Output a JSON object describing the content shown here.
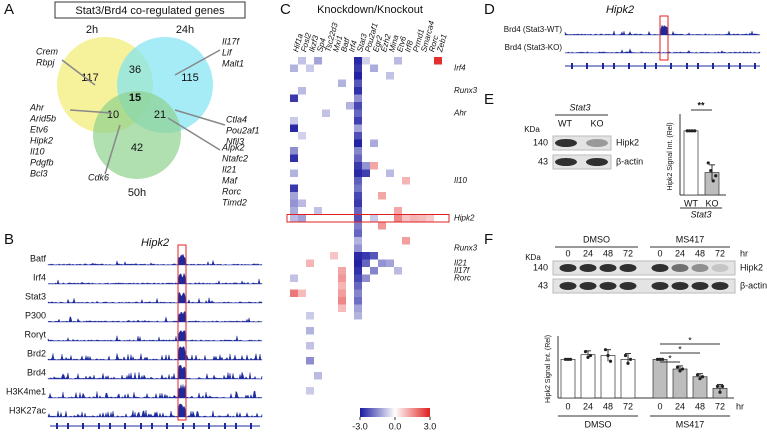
{
  "panel_labels": [
    "A",
    "B",
    "C",
    "D",
    "E",
    "F"
  ],
  "venn": {
    "title": "Stat3/Brd4 co-regulated genes",
    "sets": [
      "2h",
      "24h",
      "50h"
    ],
    "counts": {
      "only_2h": 117,
      "2h_24h": 36,
      "only_24h": 115,
      "all": 15,
      "2h_50h": 10,
      "24h_50h": 21,
      "only_50h": 42
    },
    "gene_lists": [
      [
        "Crem",
        "Rbpj"
      ],
      [
        "Il17f",
        "Lif",
        "Malt1"
      ],
      [
        "Ctla4",
        "Pou2af1",
        "Nfil3"
      ],
      [
        "Ahr",
        "Arid5b",
        "Etv6",
        "Hipk2",
        "Il10",
        "Pdgfb",
        "Bcl3"
      ],
      [
        "Cdk6"
      ],
      [
        "Alpk2",
        "Ntafc2",
        "Il21",
        "Maf",
        "Rorc",
        "Timd2"
      ]
    ],
    "highlighted_gene": [
      3,
      3
    ],
    "highlight_color": "#e02020"
  },
  "tracks_b": {
    "title": "Hipk2",
    "tracks": [
      "Batf",
      "Irf4",
      "Stat3",
      "P300",
      "Rorγt",
      "Brd2",
      "Brd4",
      "H3K4me1",
      "H3K27ac"
    ]
  },
  "tracks_d": {
    "title": "Hipk2",
    "tracks": [
      "Brd4 (Stat3-WT)",
      "Brd4 (Stat3-KO)"
    ]
  },
  "heatmap": {
    "title": "Knockdown/Knockout",
    "columns": [
      "Hif1a",
      "Fosl2",
      "Ikzf3",
      "Sp4",
      "Tsc22d3",
      "Mxi1",
      "Batf",
      "Irf4",
      "Stat3",
      "Pou2af1",
      "Egr2",
      "Ezh2",
      "Mina",
      "Etv6",
      "Irf8",
      "Prmd1",
      "Smarca4",
      "Rorc",
      "Zeb1"
    ],
    "highlighted_columns": [
      6,
      8
    ],
    "rows": 45,
    "row_labels": [
      {
        "row": 1,
        "label": "Irf4"
      },
      {
        "row": 4,
        "label": "Runx3"
      },
      {
        "row": 7,
        "label": "Ahr"
      },
      {
        "row": 16,
        "label": "Il10"
      },
      {
        "row": 21,
        "label": "Hipk2"
      },
      {
        "row": 25,
        "label": "Runx3"
      },
      {
        "row": 27,
        "label": "Il21"
      },
      {
        "row": 28,
        "label": "Il17f"
      },
      {
        "row": 29,
        "label": "Rorc"
      }
    ],
    "highlighted_row": 4,
    "cells": [
      [
        0,
        1,
        -0.8
      ],
      [
        0,
        3,
        -1.2
      ],
      [
        0,
        8,
        -2.8
      ],
      [
        0,
        9,
        -0.6
      ],
      [
        0,
        13,
        -0.9
      ],
      [
        0,
        18,
        2.8
      ],
      [
        1,
        0,
        -1.0
      ],
      [
        1,
        2,
        -0.7
      ],
      [
        1,
        8,
        -2.6
      ],
      [
        1,
        10,
        -1.1
      ],
      [
        2,
        8,
        -2.9
      ],
      [
        2,
        12,
        -0.8
      ],
      [
        3,
        6,
        -1.0
      ],
      [
        3,
        8,
        -2.2
      ],
      [
        4,
        1,
        -0.9
      ],
      [
        4,
        8,
        -2.7
      ],
      [
        5,
        8,
        -1.5
      ],
      [
        5,
        0,
        -2.6
      ],
      [
        6,
        8,
        -2.4
      ],
      [
        6,
        7,
        -1.0
      ],
      [
        7,
        4,
        -0.8
      ],
      [
        7,
        8,
        -2.0
      ],
      [
        8,
        0,
        -0.7
      ],
      [
        8,
        8,
        -2.5
      ],
      [
        9,
        0,
        -2.8
      ],
      [
        9,
        8,
        -1.2
      ],
      [
        10,
        1,
        -0.6
      ],
      [
        10,
        8,
        -2.3
      ],
      [
        11,
        8,
        -2.9
      ],
      [
        11,
        10,
        -1.1
      ],
      [
        12,
        0,
        -1.5
      ],
      [
        12,
        8,
        -1.6
      ],
      [
        13,
        0,
        -2.7
      ],
      [
        13,
        8,
        -2.0
      ],
      [
        14,
        8,
        -2.6
      ],
      [
        14,
        9,
        -1.4
      ],
      [
        14,
        10,
        1.2
      ],
      [
        15,
        0,
        -1.0
      ],
      [
        15,
        8,
        -2.8
      ],
      [
        15,
        9,
        -2.5
      ],
      [
        15,
        12,
        -0.9
      ],
      [
        16,
        8,
        -2.1
      ],
      [
        16,
        14,
        1.0
      ],
      [
        17,
        0,
        -2.6
      ],
      [
        17,
        8,
        -1.8
      ],
      [
        18,
        0,
        -1.2
      ],
      [
        18,
        8,
        -2.4
      ],
      [
        18,
        11,
        1.2
      ],
      [
        19,
        0,
        -1.4
      ],
      [
        19,
        1,
        -0.9
      ],
      [
        19,
        8,
        -2.6
      ],
      [
        20,
        0,
        -1.1
      ],
      [
        20,
        3,
        -0.8
      ],
      [
        20,
        8,
        -2.0
      ],
      [
        20,
        13,
        1.2
      ],
      [
        21,
        0,
        -0.9
      ],
      [
        21,
        1,
        -1.2
      ],
      [
        21,
        8,
        -2.3
      ],
      [
        21,
        10,
        -0.7
      ],
      [
        21,
        13,
        1.6
      ],
      [
        21,
        14,
        0.8
      ],
      [
        21,
        15,
        1.0
      ],
      [
        21,
        16,
        0.9
      ],
      [
        21,
        17,
        0.7
      ],
      [
        22,
        8,
        -1.7
      ],
      [
        22,
        11,
        1.4
      ],
      [
        23,
        8,
        -2.0
      ],
      [
        24,
        8,
        -1.0
      ],
      [
        24,
        14,
        1.3
      ],
      [
        25,
        8,
        -1.4
      ],
      [
        26,
        5,
        0.8
      ],
      [
        26,
        8,
        -2.8
      ],
      [
        26,
        9,
        -2.6
      ],
      [
        26,
        10,
        -2.2
      ],
      [
        27,
        2,
        1.0
      ],
      [
        27,
        8,
        -2.9
      ],
      [
        27,
        9,
        -2.0
      ],
      [
        27,
        11,
        -1.4
      ],
      [
        27,
        12,
        -1.2
      ],
      [
        28,
        6,
        1.2
      ],
      [
        28,
        8,
        -2.7
      ],
      [
        28,
        10,
        -1.6
      ],
      [
        28,
        13,
        -0.9
      ],
      [
        29,
        0,
        -0.8
      ],
      [
        29,
        6,
        1.4
      ],
      [
        29,
        8,
        -2.4
      ],
      [
        29,
        9,
        -1.5
      ],
      [
        30,
        6,
        1.0
      ],
      [
        30,
        8,
        -2.0
      ],
      [
        31,
        0,
        1.8
      ],
      [
        31,
        1,
        0.9
      ],
      [
        31,
        6,
        1.3
      ],
      [
        31,
        8,
        -1.6
      ],
      [
        32,
        6,
        1.6
      ],
      [
        32,
        8,
        -1.9
      ],
      [
        33,
        6,
        0.9
      ],
      [
        33,
        8,
        -1.2
      ],
      [
        34,
        2,
        -0.7
      ],
      [
        34,
        8,
        -1.0
      ],
      [
        36,
        2,
        -1.0
      ],
      [
        38,
        2,
        -0.8
      ],
      [
        40,
        2,
        -1.5
      ],
      [
        42,
        3,
        -0.9
      ],
      [
        44,
        2,
        -0.7
      ]
    ],
    "colorbar_ticks": [
      {
        "value": -3,
        "label": "-3.0"
      },
      {
        "value": 0,
        "label": "0.0"
      },
      {
        "value": 3,
        "label": "3.0"
      }
    ],
    "low_color": "#1a1aa0",
    "high_color": "#e02020"
  },
  "blot_e": {
    "genotype": "Stat3",
    "lanes": [
      "WT",
      "KO"
    ],
    "kda_label": "KDa",
    "markers": [
      "140",
      "43"
    ],
    "bands": [
      "Hipk2",
      "β-actin"
    ]
  },
  "blot_f": {
    "treatments": [
      "DMSO",
      "MS417"
    ],
    "times": [
      "0",
      "24",
      "48",
      "72"
    ],
    "unit": "hr",
    "kda_label": "KDa",
    "markers": [
      "140",
      "43"
    ],
    "bands": [
      "Hipk2",
      "β-actin"
    ]
  },
  "chart_data": [
    {
      "type": "bar",
      "ylabel": "Hipk2 Signal Int. (Rel)",
      "categories": [
        "WT",
        "KO"
      ],
      "group_label": "Stat3",
      "values": [
        1.0,
        0.35
      ],
      "errors": [
        0,
        0.12
      ],
      "points": [
        [
          1,
          1,
          1,
          1
        ],
        [
          0.5,
          0.38,
          0.22,
          0.3
        ]
      ],
      "colors": [
        "#ffffff",
        "#bdbdbd"
      ],
      "ylim": [
        0,
        1.2
      ],
      "annotation": "**"
    },
    {
      "type": "bar",
      "ylabel": "Hipk2 Signal Int. (Rel)",
      "categories": [
        "0",
        "24",
        "48",
        "72",
        "0",
        "24",
        "48",
        "72"
      ],
      "groups": [
        "DMSO",
        "MS417"
      ],
      "unit": "hr",
      "values": [
        1.0,
        1.12,
        1.1,
        1.0,
        1.0,
        0.75,
        0.55,
        0.25
      ],
      "errors": [
        0,
        0.1,
        0.15,
        0.15,
        0,
        0.08,
        0.08,
        0.1
      ],
      "points": [
        [
          1,
          1,
          1
        ],
        [
          1.2,
          1.05,
          1.1
        ],
        [
          1.25,
          1.1,
          0.95
        ],
        [
          1.1,
          0.9,
          1.0
        ],
        [
          1,
          1,
          1
        ],
        [
          0.8,
          0.7,
          0.75
        ],
        [
          0.6,
          0.5,
          0.55
        ],
        [
          0.3,
          0.15,
          0.3
        ]
      ],
      "colors": [
        "#ffffff",
        "#ffffff",
        "#ffffff",
        "#ffffff",
        "#bdbdbd",
        "#bdbdbd",
        "#bdbdbd",
        "#bdbdbd"
      ],
      "ylim": [
        0,
        1.5
      ],
      "annotations": [
        "*",
        "*",
        "*"
      ]
    }
  ]
}
